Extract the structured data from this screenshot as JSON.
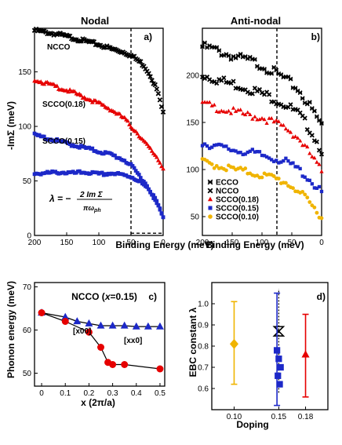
{
  "chart_data": [
    {
      "panel": "a)",
      "title": "Nodal",
      "type": "scatter",
      "xlabel": "Binding Energy (meV)",
      "ylabel": "-ImΣ (meV)",
      "xlim": [
        200,
        0
      ],
      "ylim": [
        0,
        190
      ],
      "xticks": [
        200,
        150,
        100,
        50,
        0
      ],
      "yticks": [
        0,
        50,
        100,
        150
      ],
      "xtick_labels": [
        "200",
        "150",
        "100",
        "50",
        "0"
      ],
      "ytick_labels": [
        "0",
        "50",
        "100",
        "150"
      ],
      "vline_x": 50,
      "series": [
        {
          "name": "NCCO",
          "color": "#000000",
          "marker": "x",
          "x": [
            200,
            180,
            160,
            140,
            120,
            100,
            80,
            60,
            50,
            40,
            30,
            20,
            10,
            5,
            0
          ],
          "y": [
            188,
            186,
            184,
            181,
            178,
            175,
            171,
            168,
            165,
            161,
            156,
            147,
            134,
            124,
            112
          ]
        },
        {
          "name": "SCCO(0.18)",
          "color": "#e60000",
          "marker": "triangle",
          "x": [
            200,
            180,
            160,
            140,
            120,
            100,
            80,
            60,
            50,
            40,
            30,
            20,
            10,
            5,
            0
          ],
          "y": [
            143,
            139,
            135,
            131,
            126,
            121,
            115,
            107,
            100,
            94,
            86,
            79,
            72,
            67,
            62
          ]
        },
        {
          "name": "SCCO(0.15)",
          "color": "#1c28c8",
          "marker": "square",
          "x": [
            200,
            180,
            160,
            140,
            120,
            100,
            80,
            60,
            50,
            40,
            30,
            20,
            10,
            5,
            0
          ],
          "y": [
            92,
            89,
            86,
            83,
            80,
            77,
            74,
            69,
            64,
            57,
            50,
            41,
            31,
            24,
            16
          ]
        },
        {
          "name": "",
          "color": "#1c28c8",
          "marker": "square",
          "x": [
            200,
            180,
            160,
            140,
            120,
            100,
            80,
            60,
            50,
            40,
            30,
            20,
            10,
            5,
            0
          ],
          "y": [
            57,
            57,
            58,
            57,
            58,
            56,
            57,
            55,
            54,
            51,
            46,
            40,
            31,
            24,
            16
          ]
        }
      ],
      "annotation": "λ = −2ImΣ/πω_ph"
    },
    {
      "panel": "b)",
      "title": "Anti-nodal",
      "type": "scatter",
      "xlabel": "Binding Energy (meV)",
      "ylabel": "",
      "xlim": [
        200,
        0
      ],
      "ylim": [
        30,
        250
      ],
      "xticks": [
        200,
        150,
        100,
        50,
        0
      ],
      "yticks": [
        50,
        100,
        150,
        200
      ],
      "xtick_labels": [
        "200",
        "150",
        "100",
        "50",
        "0"
      ],
      "ytick_labels": [
        "50",
        "100",
        "150",
        "200"
      ],
      "vline_x": 75,
      "legend": [
        "ECCO",
        "NCCO",
        "SCCO(0.18)",
        "SCCO(0.15)",
        "SCCO(0.10)"
      ],
      "legend_position": "bottom-left",
      "series": [
        {
          "name": "ECCO",
          "color": "#000000",
          "marker": "cross",
          "x": [
            200,
            180,
            160,
            140,
            120,
            100,
            80,
            60,
            40,
            20,
            0
          ],
          "y": [
            233,
            230,
            225,
            221,
            218,
            213,
            206,
            198,
            188,
            170,
            150
          ]
        },
        {
          "name": "NCCO",
          "color": "#000000",
          "marker": "x",
          "x": [
            200,
            180,
            160,
            140,
            120,
            100,
            80,
            60,
            40,
            20,
            0
          ],
          "y": [
            203,
            199,
            195,
            192,
            188,
            183,
            178,
            171,
            162,
            146,
            123
          ]
        },
        {
          "name": "SCCO(0.18)",
          "color": "#e60000",
          "marker": "triangle",
          "x": [
            200,
            180,
            160,
            140,
            120,
            100,
            80,
            60,
            40,
            20,
            0
          ],
          "y": [
            172,
            168,
            165,
            162,
            159,
            157,
            152,
            146,
            136,
            119,
            100
          ]
        },
        {
          "name": "SCCO(0.15)",
          "color": "#1c28c8",
          "marker": "square",
          "x": [
            200,
            180,
            160,
            140,
            120,
            100,
            80,
            60,
            40,
            20,
            0
          ],
          "y": [
            130,
            127,
            124,
            122,
            120,
            117,
            114,
            110,
            103,
            91,
            77
          ]
        },
        {
          "name": "SCCO(0.10)",
          "color": "#f0b400",
          "marker": "circle",
          "x": [
            200,
            180,
            160,
            140,
            120,
            100,
            80,
            60,
            40,
            20,
            0
          ],
          "y": [
            110,
            107,
            104,
            101,
            99,
            96,
            93,
            88,
            80,
            66,
            52
          ]
        }
      ]
    },
    {
      "panel": "c)",
      "title": "NCCO (x=0.15)",
      "type": "line",
      "xlabel": "x (2π/a)",
      "ylabel": "Phonon energy (meV)",
      "xlim": [
        -0.03,
        0.52
      ],
      "ylim": [
        47,
        71
      ],
      "xticks": [
        0,
        0.1,
        0.2,
        0.3,
        0.4,
        0.5
      ],
      "yticks": [
        50,
        60,
        70
      ],
      "xtick_labels": [
        "0",
        "0.1",
        "0.2",
        "0.3",
        "0.4",
        "0.5"
      ],
      "ytick_labels": [
        "50",
        "60",
        "70"
      ],
      "series": [
        {
          "name": "[x00]",
          "color": "#e60000",
          "marker": "circle",
          "x": [
            0,
            0.1,
            0.2,
            0.25,
            0.28,
            0.3,
            0.35,
            0.5
          ],
          "y": [
            64,
            62,
            59.5,
            56,
            52.5,
            52,
            52,
            51
          ]
        },
        {
          "name": "[xx0]",
          "color": "#1c28c8",
          "marker": "triangle",
          "x": [
            0,
            0.1,
            0.15,
            0.2,
            0.25,
            0.3,
            0.35,
            0.4,
            0.45,
            0.5
          ],
          "y": [
            64,
            63,
            62,
            61.5,
            61,
            61,
            61,
            60.8,
            60.8,
            60.8
          ]
        }
      ]
    },
    {
      "panel": "d)",
      "title": "",
      "type": "scatter",
      "xlabel": "Doping",
      "ylabel": "EBC constant λ",
      "xlim": [
        0.075,
        0.205
      ],
      "ylim": [
        0.5,
        1.1
      ],
      "xticks": [
        0.1,
        0.15,
        0.18
      ],
      "yticks": [
        0.6,
        0.7,
        0.8,
        0.9,
        1.0
      ],
      "xtick_labels": [
        "0.10",
        "0.15",
        "0.18"
      ],
      "ytick_labels": [
        "0.6",
        "0.7",
        "0.8",
        "0.9",
        "1.0"
      ],
      "series": [
        {
          "name": "SCCO(0.10)",
          "color": "#f0b400",
          "marker": "diamond",
          "x": [
            0.1
          ],
          "y": [
            0.81
          ],
          "err_low": [
            0.62
          ],
          "err_high": [
            1.01
          ]
        },
        {
          "name": "NCCO",
          "color": "#000000",
          "marker": "bowtie",
          "x": [
            0.15
          ],
          "y": [
            0.87
          ],
          "err_low": [
            0.58
          ],
          "err_high": [
            1.07
          ]
        },
        {
          "name": "SCCO(0.15)",
          "color": "#1c28c8",
          "marker": "square",
          "x": [
            0.148,
            0.15,
            0.152,
            0.149,
            0.151
          ],
          "y": [
            0.78,
            0.74,
            0.7,
            0.66,
            0.62
          ],
          "err_low": [
            0.52
          ],
          "err_high": [
            1.05
          ]
        },
        {
          "name": "SCCO(0.18)",
          "color": "#e60000",
          "marker": "triangle",
          "x": [
            0.18
          ],
          "y": [
            0.76
          ],
          "err_low": [
            0.56
          ],
          "err_high": [
            0.95
          ]
        }
      ]
    }
  ]
}
